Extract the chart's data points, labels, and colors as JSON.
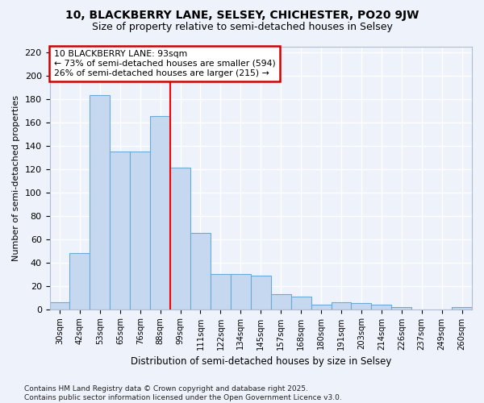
{
  "title1": "10, BLACKBERRY LANE, SELSEY, CHICHESTER, PO20 9JW",
  "title2": "Size of property relative to semi-detached houses in Selsey",
  "xlabel": "Distribution of semi-detached houses by size in Selsey",
  "ylabel": "Number of semi-detached properties",
  "categories": [
    "30sqm",
    "42sqm",
    "53sqm",
    "65sqm",
    "76sqm",
    "88sqm",
    "99sqm",
    "111sqm",
    "122sqm",
    "134sqm",
    "145sqm",
    "157sqm",
    "168sqm",
    "180sqm",
    "191sqm",
    "203sqm",
    "214sqm",
    "226sqm",
    "237sqm",
    "249sqm",
    "260sqm"
  ],
  "values": [
    6,
    48,
    183,
    135,
    135,
    165,
    121,
    65,
    30,
    30,
    29,
    13,
    11,
    4,
    6,
    5,
    4,
    2,
    0,
    0,
    2
  ],
  "bar_color": "#c5d8f0",
  "bar_edge_color": "#6aaad4",
  "red_line_x": 6.0,
  "annotation_text": "10 BLACKBERRY LANE: 93sqm\n← 73% of semi-detached houses are smaller (594)\n26% of semi-detached houses are larger (215) →",
  "annotation_box_color": "#ffffff",
  "annotation_box_edge_color": "#cc0000",
  "footer_text": "Contains HM Land Registry data © Crown copyright and database right 2025.\nContains public sector information licensed under the Open Government Licence v3.0.",
  "ylim": [
    0,
    225
  ],
  "yticks": [
    0,
    20,
    40,
    60,
    80,
    100,
    120,
    140,
    160,
    180,
    200,
    220
  ],
  "background_color": "#eef2fb",
  "grid_color": "#ffffff"
}
